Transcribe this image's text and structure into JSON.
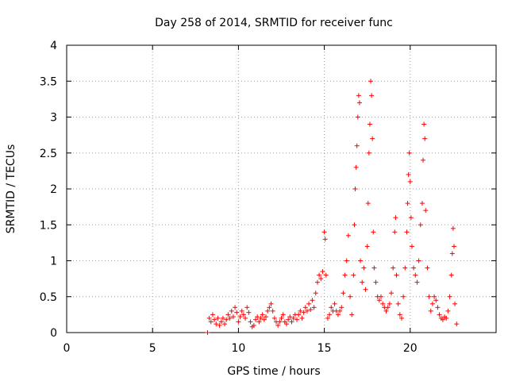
{
  "chart_data": {
    "type": "scatter",
    "title": "Day 258 of 2014, SRMTID for receiver func",
    "xlabel": "GPS time / hours",
    "ylabel": "SRMTID / TECUs",
    "xlim": [
      0,
      25
    ],
    "ylim": [
      0,
      4
    ],
    "xticks": [
      0,
      5,
      10,
      15,
      20
    ],
    "yticks": [
      0,
      0.5,
      1,
      1.5,
      2,
      2.5,
      3,
      3.5,
      4
    ],
    "xtick_labels": [
      "0",
      "5",
      "10",
      "15",
      "20"
    ],
    "ytick_labels": [
      "0",
      "0.5",
      "1",
      "1.5",
      "2",
      "2.5",
      "3",
      "3.5",
      "4"
    ],
    "grid": true,
    "marker": "+",
    "series": [
      {
        "name": "SRMTID",
        "color": "#ff0000",
        "points": [
          [
            8.2,
            0.0
          ],
          [
            8.3,
            0.2
          ],
          [
            8.4,
            0.15
          ],
          [
            8.5,
            0.25
          ],
          [
            8.6,
            0.18
          ],
          [
            8.7,
            0.12
          ],
          [
            8.8,
            0.2
          ],
          [
            8.9,
            0.1
          ],
          [
            9.0,
            0.15
          ],
          [
            9.1,
            0.2
          ],
          [
            9.2,
            0.12
          ],
          [
            9.3,
            0.18
          ],
          [
            9.4,
            0.25
          ],
          [
            9.5,
            0.2
          ],
          [
            9.6,
            0.3
          ],
          [
            9.7,
            0.22
          ],
          [
            9.8,
            0.35
          ],
          [
            9.9,
            0.28
          ],
          [
            10.0,
            0.15
          ],
          [
            10.1,
            0.22
          ],
          [
            10.2,
            0.3
          ],
          [
            10.3,
            0.25
          ],
          [
            10.4,
            0.2
          ],
          [
            10.5,
            0.35
          ],
          [
            10.6,
            0.28
          ],
          [
            10.7,
            0.15
          ],
          [
            10.8,
            0.08
          ],
          [
            10.9,
            0.1
          ],
          [
            11.0,
            0.18
          ],
          [
            11.1,
            0.22
          ],
          [
            11.2,
            0.15
          ],
          [
            11.3,
            0.2
          ],
          [
            11.4,
            0.25
          ],
          [
            11.5,
            0.18
          ],
          [
            11.6,
            0.22
          ],
          [
            11.7,
            0.3
          ],
          [
            11.8,
            0.35
          ],
          [
            11.9,
            0.4
          ],
          [
            12.0,
            0.3
          ],
          [
            12.1,
            0.2
          ],
          [
            12.2,
            0.15
          ],
          [
            12.3,
            0.1
          ],
          [
            12.4,
            0.15
          ],
          [
            12.5,
            0.2
          ],
          [
            12.6,
            0.25
          ],
          [
            12.7,
            0.15
          ],
          [
            12.8,
            0.12
          ],
          [
            12.9,
            0.18
          ],
          [
            13.0,
            0.22
          ],
          [
            13.1,
            0.15
          ],
          [
            13.2,
            0.2
          ],
          [
            13.3,
            0.25
          ],
          [
            13.4,
            0.18
          ],
          [
            13.5,
            0.25
          ],
          [
            13.6,
            0.3
          ],
          [
            13.7,
            0.2
          ],
          [
            13.8,
            0.28
          ],
          [
            13.9,
            0.35
          ],
          [
            14.0,
            0.3
          ],
          [
            14.1,
            0.4
          ],
          [
            14.2,
            0.32
          ],
          [
            14.3,
            0.45
          ],
          [
            14.4,
            0.35
          ],
          [
            14.5,
            0.55
          ],
          [
            14.6,
            0.7
          ],
          [
            14.7,
            0.8
          ],
          [
            14.8,
            0.75
          ],
          [
            14.9,
            0.85
          ],
          [
            15.0,
            1.4
          ],
          [
            15.05,
            1.3
          ],
          [
            15.1,
            0.8
          ],
          [
            15.2,
            0.2
          ],
          [
            15.3,
            0.25
          ],
          [
            15.4,
            0.35
          ],
          [
            15.5,
            0.3
          ],
          [
            15.6,
            0.4
          ],
          [
            15.7,
            0.3
          ],
          [
            15.8,
            0.25
          ],
          [
            15.9,
            0.3
          ],
          [
            16.0,
            0.35
          ],
          [
            16.1,
            0.55
          ],
          [
            16.2,
            0.8
          ],
          [
            16.3,
            1.0
          ],
          [
            16.4,
            1.35
          ],
          [
            16.5,
            0.5
          ],
          [
            16.6,
            0.25
          ],
          [
            16.7,
            0.8
          ],
          [
            16.75,
            1.5
          ],
          [
            16.8,
            2.0
          ],
          [
            16.85,
            2.3
          ],
          [
            16.9,
            2.6
          ],
          [
            16.95,
            3.0
          ],
          [
            17.0,
            3.3
          ],
          [
            17.05,
            3.2
          ],
          [
            17.1,
            1.0
          ],
          [
            17.2,
            0.7
          ],
          [
            17.3,
            0.9
          ],
          [
            17.4,
            0.6
          ],
          [
            17.5,
            1.2
          ],
          [
            17.55,
            1.8
          ],
          [
            17.6,
            2.5
          ],
          [
            17.65,
            2.9
          ],
          [
            17.7,
            3.5
          ],
          [
            17.75,
            3.3
          ],
          [
            17.8,
            2.7
          ],
          [
            17.85,
            1.4
          ],
          [
            17.9,
            0.9
          ],
          [
            18.0,
            0.7
          ],
          [
            18.1,
            0.5
          ],
          [
            18.2,
            0.45
          ],
          [
            18.3,
            0.5
          ],
          [
            18.4,
            0.4
          ],
          [
            18.5,
            0.35
          ],
          [
            18.6,
            0.3
          ],
          [
            18.7,
            0.35
          ],
          [
            18.8,
            0.4
          ],
          [
            18.9,
            0.55
          ],
          [
            19.0,
            0.9
          ],
          [
            19.1,
            1.4
          ],
          [
            19.15,
            1.6
          ],
          [
            19.2,
            0.8
          ],
          [
            19.3,
            0.4
          ],
          [
            19.4,
            0.25
          ],
          [
            19.5,
            0.2
          ],
          [
            19.6,
            0.5
          ],
          [
            19.7,
            0.9
          ],
          [
            19.8,
            1.4
          ],
          [
            19.85,
            1.8
          ],
          [
            19.9,
            2.2
          ],
          [
            19.95,
            2.5
          ],
          [
            20.0,
            2.1
          ],
          [
            20.05,
            1.6
          ],
          [
            20.1,
            1.2
          ],
          [
            20.2,
            0.9
          ],
          [
            20.3,
            0.8
          ],
          [
            20.4,
            0.7
          ],
          [
            20.5,
            1.0
          ],
          [
            20.6,
            1.5
          ],
          [
            20.7,
            1.8
          ],
          [
            20.75,
            2.4
          ],
          [
            20.8,
            2.9
          ],
          [
            20.85,
            2.7
          ],
          [
            20.9,
            1.7
          ],
          [
            21.0,
            0.9
          ],
          [
            21.1,
            0.5
          ],
          [
            21.2,
            0.3
          ],
          [
            21.3,
            0.4
          ],
          [
            21.4,
            0.5
          ],
          [
            21.5,
            0.45
          ],
          [
            21.6,
            0.35
          ],
          [
            21.7,
            0.25
          ],
          [
            21.8,
            0.2
          ],
          [
            21.9,
            0.18
          ],
          [
            22.0,
            0.22
          ],
          [
            22.1,
            0.2
          ],
          [
            22.2,
            0.3
          ],
          [
            22.3,
            0.5
          ],
          [
            22.4,
            0.8
          ],
          [
            22.45,
            1.1
          ],
          [
            22.5,
            1.45
          ],
          [
            22.55,
            1.2
          ],
          [
            22.6,
            0.4
          ],
          [
            22.7,
            0.12
          ]
        ]
      }
    ]
  }
}
